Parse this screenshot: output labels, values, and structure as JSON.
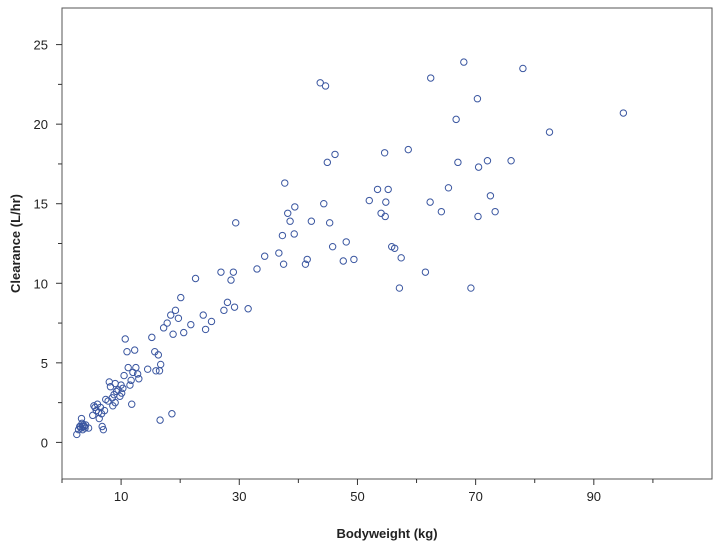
{
  "chart_data": {
    "type": "scatter",
    "title": "",
    "xlabel": "Bodyweight (kg)",
    "ylabel": "Clearance (L/hr)",
    "xlim": [
      0,
      110
    ],
    "ylim": [
      -2.3,
      27.3
    ],
    "xticks": [
      10,
      30,
      50,
      70,
      90
    ],
    "xticks_minor": [
      0,
      20,
      40,
      60,
      80,
      100
    ],
    "yticks": [
      0,
      5,
      10,
      15,
      20,
      25
    ],
    "grid": false,
    "legend": "none",
    "marker": "open-circle",
    "color": "#3a56a0",
    "series": [
      {
        "x": [
          2.5,
          2.8,
          3.0,
          3.1,
          3.2,
          3.3,
          3.4,
          3.5,
          3.5,
          3.6,
          3.8,
          3.9,
          4.0,
          4.5,
          5.2,
          5.4,
          5.6,
          5.8,
          6.0,
          6.2,
          6.3,
          6.5,
          6.7,
          6.8,
          7.0,
          7.2,
          7.4,
          7.8,
          8.0,
          8.2,
          8.5,
          8.6,
          8.8,
          9.0,
          9.0,
          9.2,
          9.5,
          9.8,
          10.0,
          10.1,
          10.3,
          10.5,
          10.7,
          11.0,
          11.2,
          11.5,
          11.7,
          12.0,
          12.3,
          12.5,
          12.8,
          13.0,
          14.5,
          15.2,
          15.7,
          15.9,
          16.3,
          16.5,
          16.7,
          17.2,
          17.8,
          18.4,
          18.8,
          19.2,
          19.7,
          20.1,
          20.6,
          21.8,
          22.6,
          23.9,
          24.3,
          25.3,
          26.9,
          27.4,
          28.0,
          28.6,
          29.0,
          29.2,
          29.4,
          31.5,
          33.0,
          34.3,
          36.7,
          37.3,
          37.5,
          37.7,
          38.2,
          38.6,
          39.3,
          39.4,
          41.2,
          41.5,
          42.2,
          43.7,
          44.3,
          44.6,
          44.9,
          45.3,
          45.8,
          46.2,
          47.6,
          48.1,
          49.4,
          52.0,
          53.4,
          54.0,
          54.6,
          54.7,
          54.8,
          55.2,
          55.8,
          56.3,
          57.1,
          57.4,
          58.6,
          61.5,
          62.3,
          62.4,
          64.2,
          65.4,
          66.7,
          67.0,
          68.0,
          69.2,
          70.3,
          70.4,
          70.5,
          72.0,
          72.5,
          73.3,
          76.0,
          78.0,
          82.5,
          95.0,
          11.8,
          16.6,
          18.6
        ],
        "y": [
          0.5,
          0.8,
          1.0,
          1.0,
          0.9,
          1.5,
          1.2,
          1.0,
          0.8,
          1.1,
          1.0,
          0.9,
          1.1,
          0.9,
          1.7,
          2.3,
          2.2,
          2.0,
          2.4,
          1.9,
          1.5,
          2.2,
          1.8,
          1.0,
          0.8,
          2.0,
          2.7,
          2.6,
          3.8,
          3.5,
          2.8,
          2.3,
          3.0,
          3.7,
          2.5,
          3.2,
          3.3,
          2.9,
          3.6,
          3.1,
          3.4,
          4.2,
          6.5,
          5.7,
          4.7,
          3.6,
          3.9,
          4.4,
          5.8,
          4.7,
          4.3,
          4.0,
          4.6,
          6.6,
          5.7,
          4.5,
          5.5,
          4.5,
          4.9,
          7.2,
          7.5,
          8.0,
          6.8,
          8.3,
          7.8,
          9.1,
          6.9,
          7.4,
          10.3,
          8.0,
          7.1,
          7.6,
          10.7,
          8.3,
          8.8,
          10.2,
          10.7,
          8.5,
          13.8,
          8.4,
          10.9,
          11.7,
          11.9,
          13.0,
          11.2,
          16.3,
          14.4,
          13.9,
          13.1,
          14.8,
          11.2,
          11.5,
          13.9,
          22.6,
          15.0,
          22.4,
          17.6,
          13.8,
          12.3,
          18.1,
          11.4,
          12.6,
          11.5,
          15.2,
          15.9,
          14.4,
          18.2,
          14.2,
          15.1,
          15.9,
          12.3,
          12.2,
          9.7,
          11.6,
          18.4,
          10.7,
          15.1,
          22.9,
          14.5,
          16.0,
          20.3,
          17.6,
          23.9,
          9.7,
          21.6,
          14.2,
          17.3,
          17.7,
          15.5,
          14.5,
          17.7,
          23.5,
          19.5,
          20.7,
          2.4,
          1.4,
          1.8
        ]
      }
    ]
  }
}
